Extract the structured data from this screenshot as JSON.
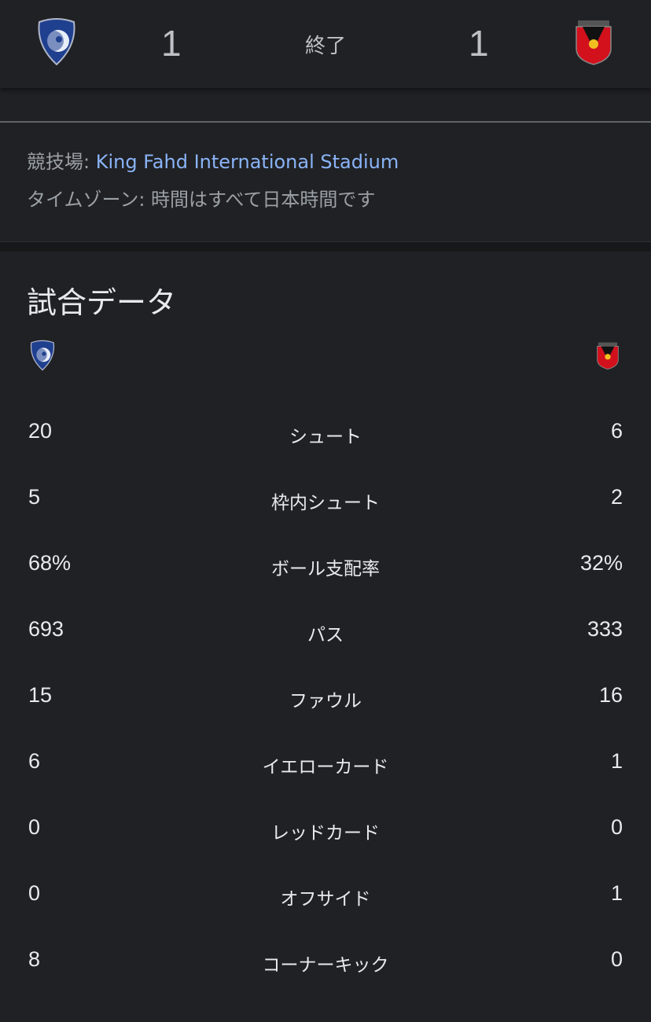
{
  "header": {
    "home_score": "1",
    "status": "終了",
    "away_score": "1",
    "home_crest": "al-hilal-crest",
    "away_crest": "urawa-reds-crest"
  },
  "info": {
    "venue_label": "競技場: ",
    "venue": "King Fahd International Stadium",
    "timezone": "タイムゾーン: 時間はすべて日本時間です"
  },
  "stats": {
    "title": "試合データ",
    "rows": [
      {
        "label": "シュート",
        "home": "20",
        "away": "6"
      },
      {
        "label": "枠内シュート",
        "home": "5",
        "away": "2"
      },
      {
        "label": "ボール支配率",
        "home": "68%",
        "away": "32%"
      },
      {
        "label": "パス",
        "home": "693",
        "away": "333"
      },
      {
        "label": "ファウル",
        "home": "15",
        "away": "16"
      },
      {
        "label": "イエローカード",
        "home": "6",
        "away": "1"
      },
      {
        "label": "レッドカード",
        "home": "0",
        "away": "0"
      },
      {
        "label": "オフサイド",
        "home": "0",
        "away": "1"
      },
      {
        "label": "コーナーキック",
        "home": "8",
        "away": "0"
      }
    ]
  }
}
